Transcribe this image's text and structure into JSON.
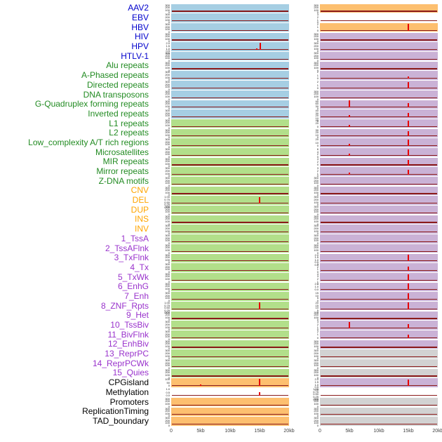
{
  "palette": {
    "label": {
      "virus": "#0000CC",
      "repeat": "#228B22",
      "sv": "#FFA500",
      "chromatin": "#9932CC",
      "other": "#000000"
    },
    "cell": {
      "blue": "#a6cee3",
      "green": "#b2df8a",
      "orange": "#fdbf6f",
      "purple": "#cab2d6",
      "gray": "#d2d2d2",
      "white": "#ffffff"
    },
    "baseline": "#8b1a1a",
    "spike": "#e60000",
    "axis_text": "#444444"
  },
  "chart_data": {
    "type": "line",
    "layout": "small-multiples, 44 rows x 2 columns, flat baseline signal with red enrichment spikes",
    "x_range_kb": [
      0,
      20
    ],
    "x_ticks": [
      "0",
      "5kb",
      "10kb",
      "15kb",
      "20kb"
    ],
    "default_yticks": [
      "300",
      "200",
      "100",
      "0"
    ],
    "rows": [
      {
        "label": "AAV2",
        "group": "virus",
        "l": {
          "bg": "blue"
        },
        "r": {
          "bg": "orange"
        }
      },
      {
        "label": "EBV",
        "group": "virus",
        "l": {
          "bg": "blue"
        },
        "r": {
          "bg": "white",
          "ticks": [
            "3",
            "2",
            "1",
            "0"
          ]
        }
      },
      {
        "label": "HBV",
        "group": "virus",
        "l": {
          "bg": "blue"
        },
        "r": {
          "bg": "orange",
          "ticks": [
            "2",
            "1",
            "0"
          ],
          "spikes": [
            [
              15,
              0.95
            ]
          ]
        }
      },
      {
        "label": "HIV",
        "group": "virus",
        "l": {
          "bg": "blue"
        },
        "r": {
          "bg": "purple"
        }
      },
      {
        "label": "HPV",
        "group": "virus",
        "l": {
          "bg": "blue",
          "ticks": [
            "2.0",
            "1.5",
            "1.0",
            "0.5",
            "0.0"
          ],
          "spikes": [
            [
              14.5,
              0.2
            ],
            [
              15.1,
              0.95
            ]
          ]
        },
        "r": {
          "bg": "purple"
        }
      },
      {
        "label": "HTLV-1",
        "group": "virus",
        "l": {
          "bg": "blue"
        },
        "r": {
          "bg": "purple"
        }
      },
      {
        "label": "Alu repeats",
        "group": "repeat",
        "l": {
          "bg": "blue"
        },
        "r": {
          "bg": "purple"
        }
      },
      {
        "label": "A-Phased repeats",
        "group": "repeat",
        "l": {
          "bg": "blue"
        },
        "r": {
          "bg": "purple",
          "ticks": [
            "2",
            "1",
            "0"
          ],
          "spikes": [
            [
              15,
              0.35
            ]
          ]
        }
      },
      {
        "label": "Directed repeats",
        "group": "repeat",
        "l": {
          "bg": "blue"
        },
        "r": {
          "bg": "purple",
          "ticks": [
            "2",
            "1",
            "0"
          ],
          "spikes": [
            [
              15,
              0.85
            ]
          ]
        }
      },
      {
        "label": "DNA transposons",
        "group": "repeat",
        "l": {
          "bg": "blue"
        },
        "r": {
          "bg": "purple"
        }
      },
      {
        "label": "G-Quadruplex forming repeats",
        "group": "repeat",
        "l": {
          "bg": "blue"
        },
        "r": {
          "bg": "purple",
          "ticks": [
            "90",
            "60",
            "30",
            "0"
          ],
          "spikes": [
            [
              5,
              0.95
            ],
            [
              15,
              0.6
            ]
          ]
        }
      },
      {
        "label": "Inverted repeats",
        "group": "repeat",
        "l": {
          "bg": "blue"
        },
        "r": {
          "bg": "purple",
          "ticks": [
            "40",
            "30",
            "20",
            "10",
            "0"
          ],
          "spikes": [
            [
              5,
              0.3
            ],
            [
              15,
              0.55
            ]
          ]
        }
      },
      {
        "label": "L1 repeats",
        "group": "repeat",
        "l": {
          "bg": "green"
        },
        "r": {
          "bg": "purple",
          "ticks": [
            "40",
            "20",
            "0"
          ],
          "spikes": [
            [
              5,
              0.25
            ],
            [
              15,
              0.85
            ]
          ]
        }
      },
      {
        "label": "L2 repeats",
        "group": "repeat",
        "l": {
          "bg": "green"
        },
        "r": {
          "bg": "purple",
          "ticks": [
            "30",
            "20",
            "10",
            "0"
          ],
          "spikes": [
            [
              15,
              0.7
            ]
          ]
        }
      },
      {
        "label": "Low_complexity A/T rich regions",
        "group": "repeat",
        "l": {
          "bg": "green"
        },
        "r": {
          "bg": "purple",
          "ticks": [
            "20",
            "10",
            "0"
          ],
          "spikes": [
            [
              5,
              0.3
            ],
            [
              15,
              0.9
            ]
          ]
        }
      },
      {
        "label": "Microsatellites",
        "group": "repeat",
        "l": {
          "bg": "green"
        },
        "r": {
          "bg": "purple",
          "ticks": [
            "6",
            "4",
            "2",
            "0"
          ],
          "spikes": [
            [
              5,
              0.25
            ],
            [
              15,
              0.8
            ]
          ]
        }
      },
      {
        "label": "MIR repeats",
        "group": "repeat",
        "l": {
          "bg": "green"
        },
        "r": {
          "bg": "purple",
          "ticks": [
            "4",
            "2",
            "0"
          ],
          "spikes": [
            [
              15,
              0.75
            ]
          ]
        }
      },
      {
        "label": "Mirror repeats",
        "group": "repeat",
        "l": {
          "bg": "green"
        },
        "r": {
          "bg": "purple",
          "ticks": [
            "3",
            "2",
            "1",
            "0"
          ],
          "spikes": [
            [
              5,
              0.3
            ],
            [
              15,
              0.7
            ]
          ]
        }
      },
      {
        "label": "Z-DNA motifs",
        "group": "repeat",
        "l": {
          "bg": "green"
        },
        "r": {
          "bg": "purple"
        }
      },
      {
        "label": "CNV",
        "group": "sv",
        "l": {
          "bg": "green"
        },
        "r": {
          "bg": "purple"
        }
      },
      {
        "label": "DEL",
        "group": "sv",
        "l": {
          "bg": "green",
          "ticks": [
            "1.00",
            "0.75",
            "0.50",
            "0.25",
            "0.00"
          ],
          "spikes": [
            [
              15,
              0.9
            ]
          ]
        },
        "r": {
          "bg": "purple"
        }
      },
      {
        "label": "DUP",
        "group": "sv",
        "l": {
          "bg": "green"
        },
        "r": {
          "bg": "purple"
        }
      },
      {
        "label": "INS",
        "group": "sv",
        "l": {
          "bg": "green"
        },
        "r": {
          "bg": "purple"
        }
      },
      {
        "label": "INV",
        "group": "sv",
        "l": {
          "bg": "green"
        },
        "r": {
          "bg": "purple"
        }
      },
      {
        "label": "1_TssA",
        "group": "chromatin",
        "l": {
          "bg": "green"
        },
        "r": {
          "bg": "purple"
        }
      },
      {
        "label": "2_TssAFlnk",
        "group": "chromatin",
        "l": {
          "bg": "green"
        },
        "r": {
          "bg": "purple"
        }
      },
      {
        "label": "3_TxFlnk",
        "group": "chromatin",
        "l": {
          "bg": "green"
        },
        "r": {
          "bg": "purple",
          "ticks": [
            "2.0",
            "1.5",
            "1.0",
            "0.5",
            "0.0"
          ],
          "spikes": [
            [
              15,
              0.9
            ]
          ]
        }
      },
      {
        "label": "4_Tx",
        "group": "chromatin",
        "l": {
          "bg": "green"
        },
        "r": {
          "bg": "purple",
          "ticks": [
            "3",
            "2",
            "1",
            "0"
          ],
          "spikes": [
            [
              15,
              0.55
            ]
          ]
        }
      },
      {
        "label": "5_TxWk",
        "group": "chromatin",
        "l": {
          "bg": "green"
        },
        "r": {
          "bg": "purple",
          "ticks": [
            "4",
            "3",
            "2",
            "1",
            "0"
          ],
          "spikes": [
            [
              15,
              0.8
            ]
          ]
        }
      },
      {
        "label": "6_EnhG",
        "group": "chromatin",
        "l": {
          "bg": "green"
        },
        "r": {
          "bg": "purple",
          "ticks": [
            "2.0",
            "1.0",
            "0.0"
          ],
          "spikes": [
            [
              15,
              0.9
            ]
          ]
        }
      },
      {
        "label": "7_Enh",
        "group": "chromatin",
        "l": {
          "bg": "green"
        },
        "r": {
          "bg": "purple",
          "ticks": [
            "15",
            "10",
            "5",
            "0"
          ],
          "spikes": [
            [
              15,
              0.85
            ]
          ]
        }
      },
      {
        "label": "8_ZNF_Rpts",
        "group": "chromatin",
        "l": {
          "bg": "green",
          "ticks": [
            "1.00",
            "0.75",
            "0.50",
            "0.25",
            "0.00"
          ],
          "spikes": [
            [
              15,
              0.9
            ]
          ]
        },
        "r": {
          "bg": "purple",
          "ticks": [
            "20",
            "15",
            "10",
            "5",
            "0"
          ],
          "spikes": [
            [
              15,
              0.9
            ]
          ]
        }
      },
      {
        "label": "9_Het",
        "group": "chromatin",
        "l": {
          "bg": "green"
        },
        "r": {
          "bg": "purple"
        }
      },
      {
        "label": "10_TssBiv",
        "group": "chromatin",
        "l": {
          "bg": "green"
        },
        "r": {
          "bg": "purple",
          "ticks": [
            "3",
            "2",
            "1",
            "0"
          ],
          "spikes": [
            [
              5,
              0.85
            ],
            [
              15,
              0.55
            ]
          ]
        }
      },
      {
        "label": "11_BivFlnk",
        "group": "chromatin",
        "l": {
          "bg": "green"
        },
        "r": {
          "bg": "purple",
          "ticks": [
            "2",
            "1",
            "0"
          ],
          "spikes": [
            [
              15,
              0.5
            ]
          ]
        }
      },
      {
        "label": "12_EnhBiv",
        "group": "chromatin",
        "l": {
          "bg": "green"
        },
        "r": {
          "bg": "purple"
        }
      },
      {
        "label": "13_ReprPC",
        "group": "chromatin",
        "l": {
          "bg": "green"
        },
        "r": {
          "bg": "gray"
        }
      },
      {
        "label": "14_ReprPCWk",
        "group": "chromatin",
        "l": {
          "bg": "green"
        },
        "r": {
          "bg": "gray"
        }
      },
      {
        "label": "15_Quies",
        "group": "chromatin",
        "l": {
          "bg": "green"
        },
        "r": {
          "bg": "gray"
        }
      },
      {
        "label": "CPGisland",
        "group": "other",
        "l": {
          "bg": "orange",
          "ticks": [
            "100",
            "50",
            "0"
          ],
          "spikes": [
            [
              5,
              0.25
            ],
            [
              15,
              1.0
            ]
          ]
        },
        "r": {
          "bg": "purple",
          "ticks": [
            "2.0",
            "1.5",
            "1.0",
            "0.5",
            "0.0"
          ],
          "spikes": [
            [
              15,
              0.9
            ]
          ]
        }
      },
      {
        "label": "Methylation",
        "group": "other",
        "l": {
          "bg": "white",
          "ticks": [
            "1.0",
            "0.5",
            "0.0"
          ],
          "spikes": [
            [
              15,
              0.5
            ]
          ]
        },
        "r": {
          "bg": "white",
          "ticks": [
            "1.00",
            "0.75",
            "0.50",
            "0.25",
            "0.00"
          ]
        }
      },
      {
        "label": "Promoters",
        "group": "other",
        "l": {
          "bg": "orange"
        },
        "r": {
          "bg": "gray"
        }
      },
      {
        "label": "ReplicationTiming",
        "group": "other",
        "l": {
          "bg": "orange"
        },
        "r": {
          "bg": "gray"
        }
      },
      {
        "label": "TAD_boundary",
        "group": "other",
        "l": {
          "bg": "orange"
        },
        "r": {
          "bg": "gray"
        }
      }
    ]
  }
}
